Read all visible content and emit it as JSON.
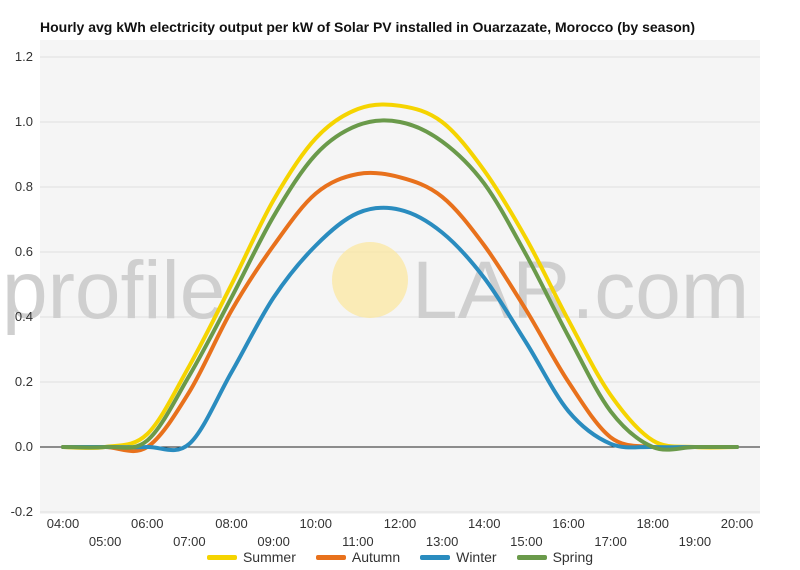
{
  "chart_data": {
    "type": "line",
    "title": "Hourly avg kWh electricity output per kW of Solar PV installed in Ouarzazate, Morocco (by season)",
    "xlabel": "",
    "ylabel": "",
    "ylim": [
      -0.2,
      1.2
    ],
    "yticks": [
      "-0.2",
      "0.0",
      "0.2",
      "0.4",
      "0.6",
      "0.8",
      "1.0",
      "1.2"
    ],
    "x": [
      "04:00",
      "05:00",
      "06:00",
      "07:00",
      "08:00",
      "09:00",
      "10:00",
      "11:00",
      "12:00",
      "13:00",
      "14:00",
      "15:00",
      "16:00",
      "17:00",
      "18:00",
      "19:00",
      "20:00"
    ],
    "grid": true,
    "legend_position": "bottom",
    "series": [
      {
        "name": "Summer",
        "color": "#f5d400",
        "values": [
          0,
          0,
          0.04,
          0.25,
          0.5,
          0.76,
          0.95,
          1.04,
          1.05,
          1.0,
          0.85,
          0.64,
          0.39,
          0.16,
          0.02,
          0,
          0
        ]
      },
      {
        "name": "Autumn",
        "color": "#e8711c",
        "values": [
          0,
          0,
          0,
          0.17,
          0.42,
          0.62,
          0.78,
          0.84,
          0.83,
          0.77,
          0.62,
          0.42,
          0.2,
          0.03,
          0,
          0,
          0
        ]
      },
      {
        "name": "Winter",
        "color": "#2a8cbf",
        "values": [
          0,
          0,
          0,
          0.01,
          0.23,
          0.46,
          0.62,
          0.72,
          0.73,
          0.66,
          0.52,
          0.32,
          0.11,
          0.01,
          0,
          0,
          0
        ]
      },
      {
        "name": "Spring",
        "color": "#6a9a4a",
        "values": [
          0,
          0,
          0.02,
          0.22,
          0.46,
          0.71,
          0.9,
          0.99,
          1.0,
          0.94,
          0.81,
          0.59,
          0.34,
          0.11,
          0,
          0,
          0
        ]
      }
    ]
  },
  "watermark": {
    "text_left": "profile",
    "text_right": "LAR.com",
    "sun_color": "#fbe7a0"
  }
}
